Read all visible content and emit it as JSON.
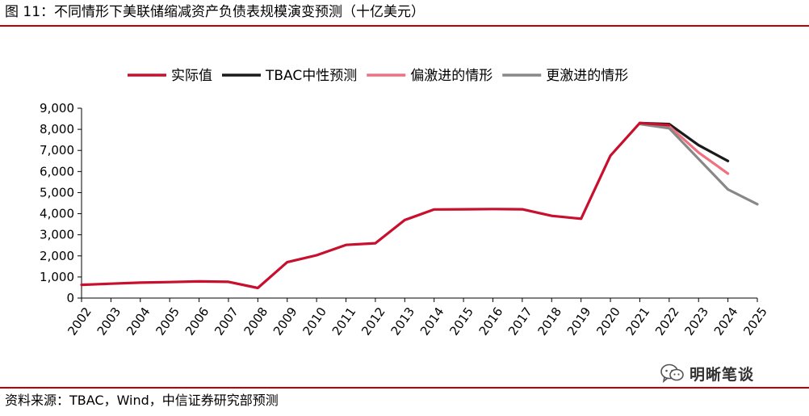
{
  "header": {
    "title": "图 11：不同情形下美联储缩减资产负债表规模演变预测（十亿美元）"
  },
  "footer": {
    "source": "资料来源：TBAC，Wind，中信证券研究部预测",
    "watermark": "明晰笔谈",
    "watermark_icon": "wechat-icon"
  },
  "chart_data": {
    "type": "line",
    "title": "",
    "xlabel": "",
    "ylabel": "",
    "ylim": [
      0,
      9000
    ],
    "yticks": [
      0,
      1000,
      2000,
      3000,
      4000,
      5000,
      6000,
      7000,
      8000,
      9000
    ],
    "ytick_labels": [
      "0",
      "1,000",
      "2,000",
      "3,000",
      "4,000",
      "5,000",
      "6,000",
      "7,000",
      "8,000",
      "9,000"
    ],
    "categories": [
      "2002",
      "2003",
      "2004",
      "2005",
      "2006",
      "2007",
      "2008",
      "2009",
      "2010",
      "2011",
      "2012",
      "2013",
      "2014",
      "2015",
      "2016",
      "2017",
      "2018",
      "2019",
      "2020",
      "2021",
      "2022",
      "2023",
      "2024",
      "2025"
    ],
    "grid": false,
    "legend_position": "top",
    "series": [
      {
        "name": "实际值",
        "color": "#c8102e",
        "x": [
          "2002",
          "2003",
          "2004",
          "2005",
          "2006",
          "2007",
          "2008",
          "2009",
          "2010",
          "2011",
          "2012",
          "2013",
          "2014",
          "2015",
          "2016",
          "2017",
          "2018",
          "2019",
          "2020",
          "2021",
          "2022"
        ],
        "values": [
          630,
          680,
          730,
          760,
          790,
          770,
          480,
          1700,
          2030,
          2520,
          2600,
          3700,
          4200,
          4210,
          4220,
          4210,
          3900,
          3760,
          6750,
          8300,
          8200
        ]
      },
      {
        "name": "TBAC中性预测",
        "color": "#1a1a1a",
        "x": [
          "2021",
          "2022",
          "2023",
          "2024"
        ],
        "values": [
          8300,
          8250,
          7250,
          6500
        ]
      },
      {
        "name": "偏激进的情形",
        "color": "#f07080",
        "x": [
          "2021",
          "2022",
          "2023",
          "2024"
        ],
        "values": [
          8300,
          8150,
          6900,
          5900
        ]
      },
      {
        "name": "更激进的情形",
        "color": "#888888",
        "x": [
          "2021",
          "2022",
          "2023",
          "2024",
          "2025"
        ],
        "values": [
          8250,
          8050,
          6600,
          5150,
          4450
        ]
      }
    ]
  }
}
